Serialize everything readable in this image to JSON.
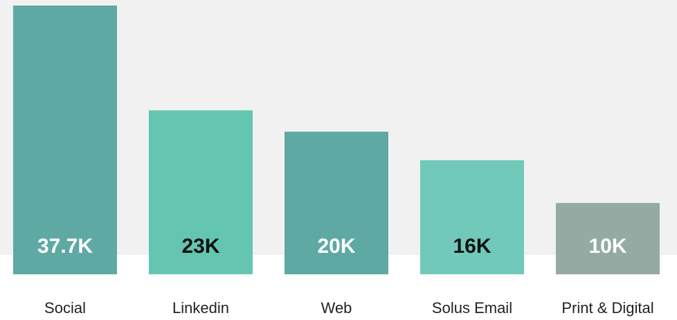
{
  "chart_data": {
    "type": "bar",
    "categories": [
      "Social",
      "Linkedin",
      "Web",
      "Solus Email",
      "Print & Digital"
    ],
    "values": [
      37.7,
      23,
      20,
      16,
      10
    ],
    "value_labels": [
      "37.7K",
      "23K",
      "20K",
      "16K",
      "10K"
    ],
    "unit": "K",
    "title": "",
    "xlabel": "",
    "ylabel": "",
    "grid": false,
    "legend": "none"
  },
  "colors": {
    "plot_background": "#f1f1f1",
    "page_background": "#ffffff",
    "bars": [
      "#5ea9a3",
      "#64c6b1",
      "#5ea9a3",
      "#70c9b9",
      "#93aba3"
    ],
    "value_label_colors": [
      "#ffffff",
      "#111111",
      "#ffffff",
      "#111111",
      "#ffffff"
    ],
    "category_label": "#222222"
  }
}
